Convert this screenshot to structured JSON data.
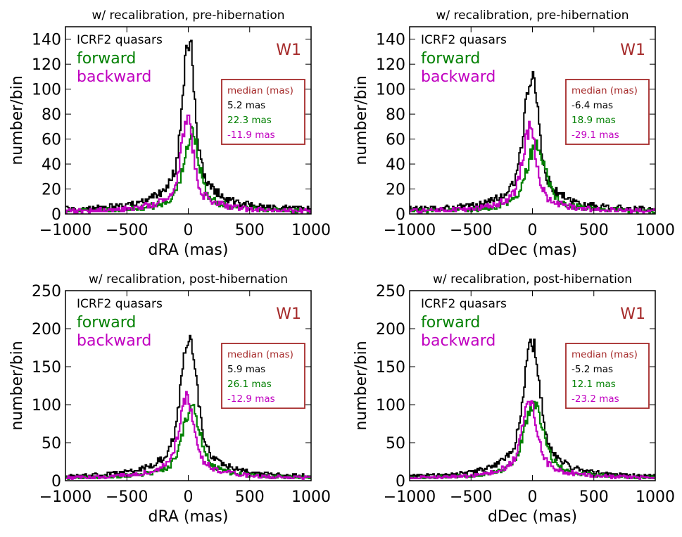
{
  "colors": {
    "all": "#000000",
    "forward": "#008000",
    "backward": "#c000c0",
    "accent": "#a52a2a"
  },
  "chart_data": [
    {
      "type": "histogram",
      "title": "w/ recalibration, pre-hibernation",
      "xlabel": "dRA (mas)",
      "ylabel": "number/bin",
      "xlim": [
        -1000,
        1000
      ],
      "ylim": [
        0,
        150
      ],
      "xticks": [
        -1000,
        -500,
        0,
        500,
        1000
      ],
      "xtick_labels": [
        "−1000",
        "−500",
        "0",
        "500",
        "1000"
      ],
      "yticks": [
        0,
        20,
        40,
        60,
        80,
        100,
        120,
        140
      ],
      "band_label": "W1",
      "legend": [
        "ICRF2 quasars",
        "forward",
        "backward"
      ],
      "median_box": {
        "title": "median (mas)",
        "values": [
          "5.2 mas",
          "22.3 mas",
          "-11.9 mas"
        ]
      },
      "series": [
        {
          "name": "ICRF2 quasars",
          "color_key": "all",
          "center": 5,
          "peak": 140,
          "core": 45,
          "wing": 170,
          "wing_frac": 0.3,
          "floor": 3
        },
        {
          "name": "forward",
          "color_key": "forward",
          "center": 25,
          "peak": 65,
          "core": 55,
          "wing": 175,
          "wing_frac": 0.3,
          "floor": 2
        },
        {
          "name": "backward",
          "color_key": "backward",
          "center": -10,
          "peak": 75,
          "core": 45,
          "wing": 165,
          "wing_frac": 0.3,
          "floor": 2
        }
      ]
    },
    {
      "type": "histogram",
      "title": "w/ recalibration, pre-hibernation",
      "xlabel": "dDec (mas)",
      "ylabel": "number/bin",
      "xlim": [
        -1000,
        1000
      ],
      "ylim": [
        0,
        150
      ],
      "xticks": [
        -1000,
        -500,
        0,
        500,
        1000
      ],
      "xtick_labels": [
        "−1000",
        "−500",
        "0",
        "500",
        "1000"
      ],
      "yticks": [
        0,
        20,
        40,
        60,
        80,
        100,
        120,
        140
      ],
      "band_label": "W1",
      "legend": [
        "ICRF2 quasars",
        "forward",
        "backward"
      ],
      "median_box": {
        "title": "median (mas)",
        "values": [
          "-6.4 mas",
          "18.9 mas",
          "-29.1 mas"
        ]
      },
      "series": [
        {
          "name": "ICRF2 quasars",
          "color_key": "all",
          "center": -8,
          "peak": 112,
          "core": 55,
          "wing": 180,
          "wing_frac": 0.3,
          "floor": 3
        },
        {
          "name": "forward",
          "color_key": "forward",
          "center": 30,
          "peak": 55,
          "core": 70,
          "wing": 185,
          "wing_frac": 0.3,
          "floor": 2
        },
        {
          "name": "backward",
          "color_key": "backward",
          "center": -25,
          "peak": 68,
          "core": 50,
          "wing": 170,
          "wing_frac": 0.3,
          "floor": 2
        }
      ]
    },
    {
      "type": "histogram",
      "title": "w/ recalibration, post-hibernation",
      "xlabel": "dRA (mas)",
      "ylabel": "number/bin",
      "xlim": [
        -1000,
        1000
      ],
      "ylim": [
        0,
        250
      ],
      "xticks": [
        -1000,
        -500,
        0,
        500,
        1000
      ],
      "xtick_labels": [
        "−1000",
        "−500",
        "0",
        "500",
        "1000"
      ],
      "yticks": [
        0,
        50,
        100,
        150,
        200,
        250
      ],
      "band_label": "W1",
      "legend": [
        "ICRF2 quasars",
        "forward",
        "backward"
      ],
      "median_box": {
        "title": "median (mas)",
        "values": [
          "5.9 mas",
          "26.1 mas",
          "-12.9 mas"
        ]
      },
      "series": [
        {
          "name": "ICRF2 quasars",
          "color_key": "all",
          "center": 5,
          "peak": 185,
          "core": 60,
          "wing": 200,
          "wing_frac": 0.3,
          "floor": 4
        },
        {
          "name": "forward",
          "color_key": "forward",
          "center": 25,
          "peak": 95,
          "core": 65,
          "wing": 200,
          "wing_frac": 0.3,
          "floor": 3
        },
        {
          "name": "backward",
          "color_key": "backward",
          "center": -12,
          "peak": 108,
          "core": 55,
          "wing": 190,
          "wing_frac": 0.3,
          "floor": 3
        }
      ]
    },
    {
      "type": "histogram",
      "title": "w/ recalibration, post-hibernation",
      "xlabel": "dDec (mas)",
      "ylabel": "number/bin",
      "xlim": [
        -1000,
        1000
      ],
      "ylim": [
        0,
        250
      ],
      "xticks": [
        -1000,
        -500,
        0,
        500,
        1000
      ],
      "xtick_labels": [
        "−1000",
        "−500",
        "0",
        "500",
        "1000"
      ],
      "yticks": [
        0,
        50,
        100,
        150,
        200,
        250
      ],
      "band_label": "W1",
      "legend": [
        "ICRF2 quasars",
        "forward",
        "backward"
      ],
      "median_box": {
        "title": "median (mas)",
        "values": [
          "-5.2 mas",
          "12.1 mas",
          "-23.2 mas"
        ]
      },
      "series": [
        {
          "name": "ICRF2 quasars",
          "color_key": "all",
          "center": -5,
          "peak": 182,
          "core": 60,
          "wing": 200,
          "wing_frac": 0.3,
          "floor": 4
        },
        {
          "name": "forward",
          "color_key": "forward",
          "center": 12,
          "peak": 102,
          "core": 70,
          "wing": 205,
          "wing_frac": 0.3,
          "floor": 3
        },
        {
          "name": "backward",
          "color_key": "backward",
          "center": -23,
          "peak": 103,
          "core": 55,
          "wing": 190,
          "wing_frac": 0.3,
          "floor": 3
        }
      ]
    }
  ]
}
